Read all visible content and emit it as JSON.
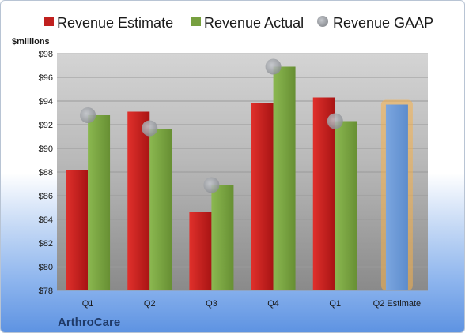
{
  "chart_data": {
    "type": "bar",
    "ylabel": "$millions",
    "ylim": [
      78,
      98
    ],
    "ytick_step": 2,
    "yticks": [
      "$78",
      "$80",
      "$82",
      "$84",
      "$86",
      "$88",
      "$90",
      "$92",
      "$94",
      "$96",
      "$98"
    ],
    "categories": [
      "Q1",
      "Q2",
      "Q3",
      "Q4",
      "Q1",
      "Q2 Estimate"
    ],
    "series": [
      {
        "name": "Revenue Estimate",
        "kind": "bar",
        "color": "#c0201e",
        "values": [
          88.2,
          93.1,
          84.6,
          93.8,
          94.3,
          null
        ]
      },
      {
        "name": "Revenue Actual",
        "kind": "bar",
        "color": "#77a040",
        "values": [
          92.8,
          91.6,
          86.9,
          96.9,
          92.3,
          null
        ]
      },
      {
        "name": "Revenue GAAP",
        "kind": "marker",
        "color": "#a6a9ae",
        "values": [
          92.8,
          91.7,
          86.9,
          96.9,
          92.3,
          null
        ]
      }
    ],
    "forecast": {
      "category_index": 5,
      "value": 93.7,
      "color": "#6e9ad6",
      "glow": "#f5b04a"
    },
    "grid": true,
    "legend_position": "top",
    "brand": "ArthroCare"
  }
}
